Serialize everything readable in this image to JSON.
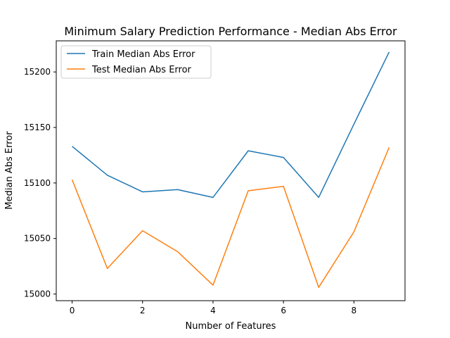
{
  "chart_data": {
    "type": "line",
    "title": "Minimum Salary Prediction Performance - Median Abs Error",
    "xlabel": "Number of Features",
    "ylabel": "Median Abs Error",
    "x": [
      0,
      1,
      2,
      3,
      4,
      5,
      6,
      7,
      8,
      9
    ],
    "xlim": [
      -0.45,
      9.45
    ],
    "ylim": [
      14994,
      15228
    ],
    "xticks": [
      0,
      2,
      4,
      6,
      8
    ],
    "yticks": [
      15000,
      15050,
      15100,
      15150,
      15200
    ],
    "grid": false,
    "legend_position": "upper-left",
    "series": [
      {
        "name": "Train Median Abs Error",
        "color": "#1f77b4",
        "values": [
          15133,
          15107,
          15092,
          15094,
          15087,
          15129,
          15123,
          15087,
          15153,
          15218
        ]
      },
      {
        "name": "Test Median Abs Error",
        "color": "#ff7f0e",
        "values": [
          15103,
          15023,
          15057,
          15038,
          15008,
          15093,
          15097,
          15006,
          15056,
          15132
        ]
      }
    ]
  }
}
